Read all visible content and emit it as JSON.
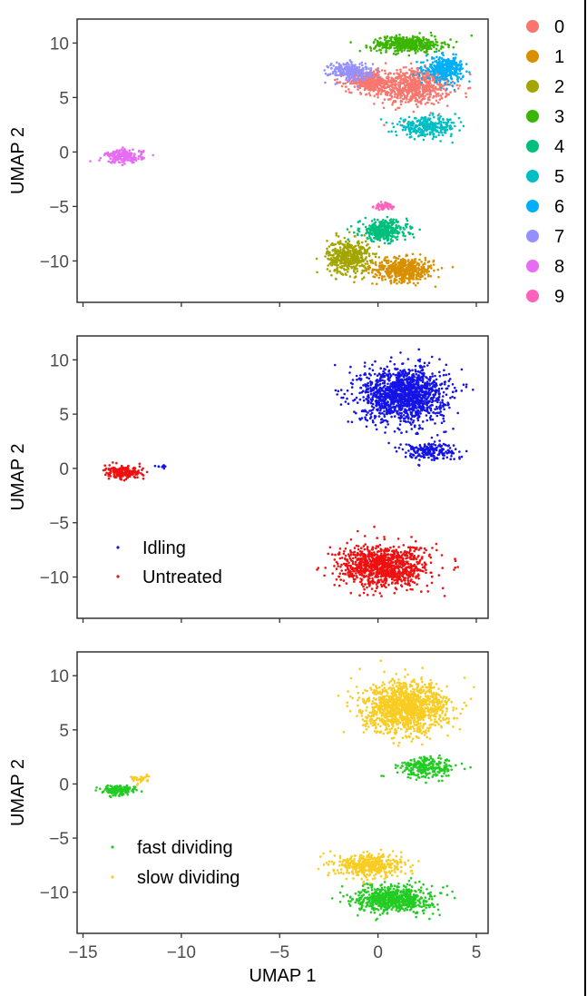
{
  "chart_data": [
    {
      "type": "scatter",
      "xlabel": "",
      "ylabel": "UMAP 2",
      "xlim": [
        -15.3,
        5.6
      ],
      "ylim": [
        -13.8,
        12.2
      ],
      "xticks": [
        -15,
        -10,
        -5,
        0,
        5
      ],
      "xtick_labels": [
        "",
        "",
        "",
        "",
        ""
      ],
      "yticks": [
        10,
        5,
        0,
        -5,
        -10
      ],
      "ytick_labels": [
        "10",
        "5",
        "0",
        "−5",
        "−10"
      ],
      "grid": false,
      "legend_position": "right",
      "series": [
        {
          "name": "0",
          "color": "#F8766D",
          "clusters": [
            [
              1.8,
              6.0,
              1.6,
              1.4,
              700
            ],
            [
              -0.5,
              6.5,
              0.9,
              0.8,
              300
            ]
          ]
        },
        {
          "name": "1",
          "color": "#D89000",
          "clusters": [
            [
              1.3,
              -10.8,
              1.3,
              0.9,
              500
            ]
          ]
        },
        {
          "name": "2",
          "color": "#A3A500",
          "clusters": [
            [
              -1.5,
              -9.6,
              0.9,
              1.3,
              450
            ]
          ]
        },
        {
          "name": "3",
          "color": "#39B600",
          "clusters": [
            [
              1.5,
              9.9,
              1.5,
              0.6,
              450
            ]
          ]
        },
        {
          "name": "4",
          "color": "#00BF7D",
          "clusters": [
            [
              0.3,
              -7.2,
              1.0,
              0.8,
              350
            ]
          ]
        },
        {
          "name": "5",
          "color": "#00BFC4",
          "clusters": [
            [
              2.5,
              2.3,
              1.3,
              0.7,
              300
            ]
          ]
        },
        {
          "name": "6",
          "color": "#00B0F6",
          "clusters": [
            [
              3.4,
              7.6,
              0.8,
              0.9,
              350
            ]
          ]
        },
        {
          "name": "7",
          "color": "#9590FF",
          "clusters": [
            [
              -1.4,
              7.4,
              0.9,
              0.7,
              250
            ]
          ]
        },
        {
          "name": "8",
          "color": "#E76BF3",
          "clusters": [
            [
              -12.9,
              -0.4,
              0.8,
              0.5,
              200
            ]
          ]
        },
        {
          "name": "9",
          "color": "#FF62BC",
          "clusters": [
            [
              0.3,
              -5.0,
              0.4,
              0.25,
              60
            ]
          ]
        }
      ]
    },
    {
      "type": "scatter",
      "xlabel": "",
      "ylabel": "UMAP 2",
      "xlim": [
        -15.3,
        5.6
      ],
      "ylim": [
        -13.8,
        12.2
      ],
      "xticks": [
        -15,
        -10,
        -5,
        0,
        5
      ],
      "xtick_labels": [
        "",
        "",
        "",
        "",
        ""
      ],
      "yticks": [
        10,
        5,
        0,
        -5,
        -10
      ],
      "ytick_labels": [
        "10",
        "5",
        "0",
        "−5",
        "−10"
      ],
      "grid": false,
      "legend_position": "bottom-left",
      "series": [
        {
          "name": "Idling",
          "color": "#1414E6",
          "clusters": [
            [
              1.3,
              6.8,
              1.8,
              2.1,
              1400
            ],
            [
              2.6,
              1.6,
              1.2,
              0.7,
              200
            ],
            [
              -11.0,
              0.2,
              0.2,
              0.1,
              10
            ]
          ]
        },
        {
          "name": "Untreated",
          "color": "#EE1111",
          "clusters": [
            [
              0.3,
              -9.0,
              1.9,
              1.6,
              1000
            ],
            [
              -12.9,
              -0.4,
              0.8,
              0.5,
              200
            ]
          ]
        }
      ]
    },
    {
      "type": "scatter",
      "xlabel": "UMAP 1",
      "ylabel": "UMAP 2",
      "xlim": [
        -15.3,
        5.6
      ],
      "ylim": [
        -13.8,
        12.2
      ],
      "xticks": [
        -15,
        -10,
        -5,
        0,
        5
      ],
      "xtick_labels": [
        "−15",
        "−10",
        "−5",
        "0",
        "5"
      ],
      "yticks": [
        10,
        5,
        0,
        -5,
        -10
      ],
      "ytick_labels": [
        "10",
        "5",
        "0",
        "−5",
        "−10"
      ],
      "grid": false,
      "legend_position": "bottom-left",
      "series": [
        {
          "name": "fast dividing",
          "color": "#22CC22",
          "clusters": [
            [
              0.8,
              -10.6,
              1.6,
              1.0,
              700
            ],
            [
              2.5,
              1.5,
              1.2,
              0.8,
              250
            ],
            [
              -13.2,
              -0.6,
              0.7,
              0.4,
              150
            ]
          ]
        },
        {
          "name": "slow dividing",
          "color": "#F8CC22",
          "clusters": [
            [
              1.4,
              7.0,
              1.8,
              1.9,
              1300
            ],
            [
              -0.4,
              -7.5,
              1.4,
              0.9,
              450
            ],
            [
              -12.1,
              0.4,
              0.4,
              0.3,
              40
            ]
          ]
        }
      ]
    }
  ]
}
